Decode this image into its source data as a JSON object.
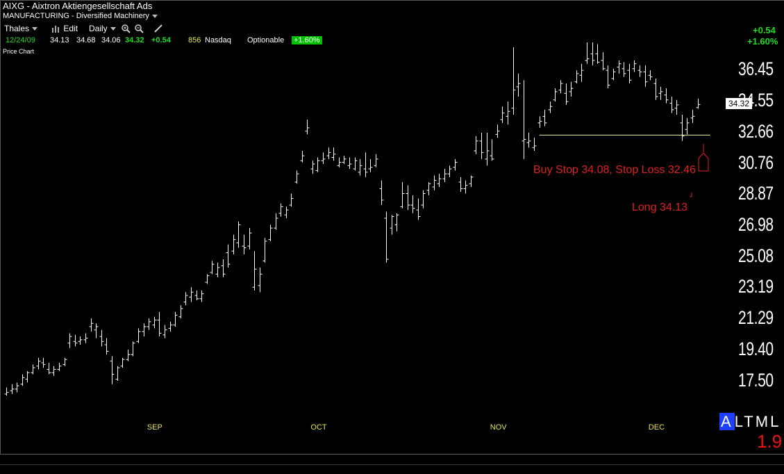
{
  "header": {
    "symbol_title": "AIXG - Aixtron Aktiengesellschaft Ads",
    "industry": "MANUFACTURING - Diversified Machinery"
  },
  "toolbar": {
    "layout_name": "Thales",
    "edit_label": "Edit",
    "period_label": "Daily"
  },
  "quote": {
    "date": "12/24/09",
    "open": "34.13",
    "high": "34.68",
    "low": "34.06",
    "close": "34.32",
    "change": "+0.54",
    "volume": "856",
    "exchange": "Nasdaq",
    "optionable": "Optionable",
    "change_pct": "+1.60%"
  },
  "panel_label": "Price Chart",
  "right_summary": {
    "change": "+0.54",
    "change_pct": "+1.60%"
  },
  "last_price_tag": "34.32",
  "mode_selector": {
    "letters": [
      "A",
      "L",
      "T",
      "M",
      "L"
    ],
    "selected": "A"
  },
  "ratio_value": "1.9",
  "colors": {
    "bar": "#ffffff",
    "annotation": "#e02020",
    "month_label": "#e6e65c",
    "positive": "#22dd22",
    "stop_line": "#f0f0b0"
  },
  "chart_data": {
    "type": "ohlc",
    "y_ticks": [
      "36.45",
      "34.55",
      "32.66",
      "30.76",
      "28.87",
      "26.98",
      "25.08",
      "23.19",
      "21.29",
      "19.40",
      "17.50"
    ],
    "ylim": [
      16.9,
      38.1
    ],
    "x_month_labels": [
      {
        "label": "SEP",
        "index": 28
      },
      {
        "label": "OCT",
        "index": 59
      },
      {
        "label": "NOV",
        "index": 93
      },
      {
        "label": "DEC",
        "index": 123
      }
    ],
    "bars": [
      [
        16.7,
        17.1,
        16.6,
        16.8
      ],
      [
        16.9,
        17.3,
        16.7,
        17.0
      ],
      [
        17.0,
        17.4,
        16.8,
        17.2
      ],
      [
        17.3,
        17.9,
        17.2,
        17.7
      ],
      [
        17.6,
        18.1,
        17.4,
        18.0
      ],
      [
        18.0,
        18.5,
        17.9,
        18.3
      ],
      [
        18.4,
        18.9,
        18.2,
        18.7
      ],
      [
        18.6,
        18.9,
        18.3,
        18.5
      ],
      [
        18.2,
        18.6,
        17.9,
        18.0
      ],
      [
        18.0,
        18.4,
        17.8,
        18.2
      ],
      [
        18.2,
        18.6,
        18.1,
        18.4
      ],
      [
        18.5,
        18.9,
        18.4,
        18.8
      ],
      [
        19.8,
        20.4,
        19.5,
        20.2
      ],
      [
        19.9,
        20.3,
        19.6,
        19.8
      ],
      [
        19.9,
        20.2,
        19.7,
        20.0
      ],
      [
        20.0,
        20.4,
        19.8,
        20.1
      ],
      [
        20.8,
        21.3,
        20.5,
        21.0
      ],
      [
        20.6,
        21.0,
        20.1,
        20.8
      ],
      [
        20.2,
        20.6,
        19.6,
        19.9
      ],
      [
        19.7,
        20.1,
        19.1,
        19.3
      ],
      [
        18.7,
        19.0,
        17.3,
        17.9
      ],
      [
        17.6,
        18.4,
        17.5,
        18.3
      ],
      [
        18.4,
        18.9,
        18.3,
        18.8
      ],
      [
        18.8,
        19.4,
        18.7,
        19.1
      ],
      [
        19.1,
        19.9,
        19.0,
        19.8
      ],
      [
        19.9,
        20.7,
        19.8,
        20.5
      ],
      [
        20.5,
        21.0,
        20.2,
        20.8
      ],
      [
        20.8,
        21.3,
        20.6,
        21.1
      ],
      [
        20.9,
        21.4,
        20.7,
        21.2
      ],
      [
        21.2,
        21.7,
        20.2,
        20.4
      ],
      [
        20.3,
        20.9,
        20.1,
        20.6
      ],
      [
        20.7,
        21.1,
        20.5,
        20.9
      ],
      [
        20.9,
        21.7,
        20.8,
        21.5
      ],
      [
        21.4,
        22.1,
        21.3,
        21.9
      ],
      [
        22.3,
        22.9,
        22.1,
        22.7
      ],
      [
        22.6,
        23.2,
        22.3,
        22.9
      ],
      [
        22.7,
        23.0,
        22.4,
        22.5
      ],
      [
        22.5,
        23.0,
        22.3,
        22.8
      ],
      [
        23.5,
        24.0,
        23.4,
        23.9
      ],
      [
        24.1,
        24.8,
        24.0,
        24.6
      ],
      [
        24.0,
        24.7,
        23.8,
        24.4
      ],
      [
        24.5,
        24.9,
        23.8,
        24.0
      ],
      [
        25.3,
        25.8,
        24.4,
        24.6
      ],
      [
        25.4,
        26.4,
        25.2,
        26.1
      ],
      [
        25.9,
        27.2,
        25.6,
        27.0
      ],
      [
        25.7,
        26.4,
        25.2,
        25.6
      ],
      [
        25.7,
        26.8,
        25.5,
        26.5
      ],
      [
        23.2,
        25.4,
        23.0,
        24.3
      ],
      [
        23.3,
        24.4,
        22.9,
        24.0
      ],
      [
        24.8,
        26.2,
        24.7,
        26.0
      ],
      [
        26.1,
        27.0,
        26.0,
        26.8
      ],
      [
        26.8,
        27.7,
        26.7,
        27.4
      ],
      [
        27.7,
        28.3,
        27.5,
        28.1
      ],
      [
        27.6,
        28.1,
        27.4,
        27.9
      ],
      [
        28.2,
        28.9,
        28.1,
        28.6
      ],
      [
        29.6,
        30.3,
        29.5,
        30.1
      ],
      [
        30.9,
        31.5,
        30.8,
        31.2
      ],
      [
        32.7,
        33.4,
        32.5,
        32.9
      ],
      [
        30.4,
        30.9,
        30.1,
        30.7
      ],
      [
        30.3,
        31.1,
        30.2,
        30.9
      ],
      [
        30.9,
        31.4,
        30.7,
        31.0
      ],
      [
        31.2,
        31.7,
        31.0,
        31.4
      ],
      [
        31.1,
        31.7,
        30.9,
        31.3
      ],
      [
        30.6,
        31.1,
        30.5,
        30.8
      ],
      [
        30.8,
        31.2,
        30.7,
        31.0
      ],
      [
        30.6,
        31.1,
        30.4,
        30.7
      ],
      [
        30.4,
        31.1,
        30.3,
        30.9
      ],
      [
        30.2,
        31.0,
        30.0,
        30.6
      ],
      [
        30.4,
        31.4,
        29.9,
        30.2
      ],
      [
        30.4,
        31.0,
        30.2,
        30.5
      ],
      [
        30.6,
        31.3,
        30.5,
        31.0
      ],
      [
        29.2,
        29.7,
        28.2,
        28.5
      ],
      [
        27.4,
        27.8,
        24.7,
        24.9
      ],
      [
        26.8,
        27.6,
        26.4,
        27.5
      ],
      [
        27.0,
        27.7,
        26.6,
        27.6
      ],
      [
        28.1,
        29.6,
        28.0,
        28.9
      ],
      [
        28.9,
        29.4,
        27.9,
        28.2
      ],
      [
        28.2,
        28.8,
        27.7,
        28.0
      ],
      [
        27.9,
        28.6,
        27.3,
        27.5
      ],
      [
        28.2,
        29.1,
        28.0,
        28.9
      ],
      [
        29.1,
        29.6,
        28.8,
        29.5
      ],
      [
        29.3,
        30.0,
        29.1,
        29.7
      ],
      [
        29.5,
        30.1,
        29.3,
        29.8
      ],
      [
        29.8,
        30.4,
        29.6,
        30.1
      ],
      [
        30.1,
        30.6,
        29.9,
        30.4
      ],
      [
        30.5,
        31.0,
        30.3,
        30.8
      ],
      [
        29.6,
        29.9,
        29.0,
        29.2
      ],
      [
        29.2,
        29.7,
        28.9,
        29.4
      ],
      [
        29.5,
        30.0,
        29.3,
        29.9
      ],
      [
        31.5,
        32.4,
        31.3,
        32.1
      ],
      [
        32.1,
        32.6,
        31.0,
        31.4
      ],
      [
        31.0,
        32.6,
        30.6,
        31.5
      ],
      [
        31.2,
        32.2,
        30.9,
        31.0
      ],
      [
        32.5,
        33.1,
        32.3,
        32.7
      ],
      [
        33.4,
        34.2,
        33.2,
        33.8
      ],
      [
        33.6,
        34.5,
        33.1,
        33.9
      ],
      [
        34.1,
        37.8,
        33.7,
        35.2
      ],
      [
        35.4,
        36.2,
        34.8,
        35.6
      ],
      [
        32.1,
        35.8,
        31.0,
        32.2
      ],
      [
        32.0,
        32.6,
        31.7,
        32.1
      ],
      [
        31.7,
        32.3,
        31.5,
        31.8
      ],
      [
        33.2,
        33.6,
        32.9,
        33.3
      ],
      [
        33.6,
        34.0,
        33.0,
        33.2
      ],
      [
        34.0,
        34.5,
        33.8,
        34.2
      ],
      [
        34.6,
        35.3,
        34.5,
        35.1
      ],
      [
        35.2,
        35.8,
        35.0,
        35.6
      ],
      [
        35.0,
        35.6,
        34.3,
        34.5
      ],
      [
        35.1,
        35.7,
        34.8,
        35.3
      ],
      [
        35.7,
        36.4,
        35.6,
        36.2
      ],
      [
        36.1,
        36.8,
        35.7,
        36.4
      ],
      [
        37.0,
        38.1,
        36.8,
        37.1
      ],
      [
        37.4,
        38.1,
        36.7,
        37.0
      ],
      [
        37.4,
        38.0,
        36.8,
        36.9
      ],
      [
        37.0,
        37.5,
        36.4,
        36.5
      ],
      [
        36.4,
        36.7,
        35.3,
        35.5
      ],
      [
        35.9,
        36.5,
        35.8,
        36.3
      ],
      [
        36.6,
        37.0,
        36.2,
        36.8
      ],
      [
        36.5,
        36.9,
        36.0,
        36.2
      ],
      [
        36.4,
        36.8,
        35.6,
        35.8
      ],
      [
        36.5,
        37.0,
        36.3,
        36.8
      ],
      [
        36.4,
        36.7,
        36.0,
        36.3
      ],
      [
        36.3,
        36.7,
        35.4,
        35.7
      ],
      [
        36.1,
        36.4,
        35.8,
        36.0
      ],
      [
        35.6,
        35.9,
        34.6,
        34.8
      ],
      [
        35.0,
        35.4,
        34.6,
        35.1
      ],
      [
        34.9,
        35.3,
        34.4,
        34.6
      ],
      [
        34.4,
        34.8,
        33.8,
        34.0
      ],
      [
        34.1,
        34.6,
        33.7,
        34.3
      ],
      [
        33.2,
        33.7,
        32.1,
        32.4
      ],
      [
        32.8,
        33.5,
        32.5,
        33.2
      ],
      [
        33.5,
        34.0,
        33.2,
        33.6
      ],
      [
        34.13,
        34.68,
        34.06,
        34.32
      ]
    ],
    "annotations": [
      {
        "text": "Buy Stop 34.08, Stop Loss 32.46"
      },
      {
        "text": "Long 34.13"
      }
    ],
    "stop_level": 32.46
  }
}
